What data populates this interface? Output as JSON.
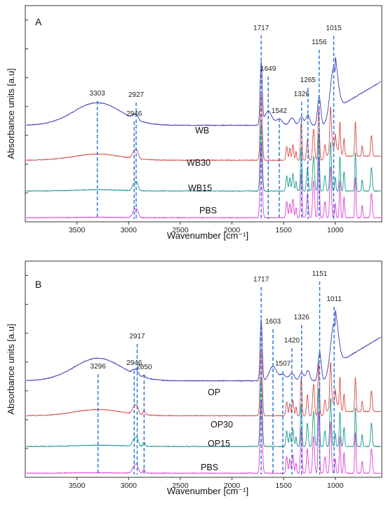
{
  "colors": {
    "blue": "#3b3bb8",
    "red": "#d94a4a",
    "teal": "#199a8d",
    "magenta": "#e040d8",
    "peak_line": "#2a6fd6"
  },
  "chart_data": [
    {
      "type": "line",
      "panel": "A",
      "xlabel": "Wavenumber [cm⁻¹]",
      "ylabel": "Absorbance units [a.u]",
      "xlim": [
        4000,
        550
      ],
      "x_reversed": true,
      "xticks": [
        3500,
        3000,
        2500,
        2000,
        1500,
        1000
      ],
      "grid": false,
      "series": [
        {
          "name": "WB",
          "color": "blue",
          "offset": 0.47
        },
        {
          "name": "WB30",
          "color": "red",
          "offset": 0.3
        },
        {
          "name": "WB15",
          "color": "teal",
          "offset": 0.15
        },
        {
          "name": "PBS",
          "color": "magenta",
          "offset": 0.02
        }
      ],
      "peaks": [
        {
          "x": 3303,
          "label": "3303"
        },
        {
          "x": 2946,
          "label": "2946"
        },
        {
          "x": 2927,
          "label": "2927"
        },
        {
          "x": 1717,
          "label": "1717"
        },
        {
          "x": 1649,
          "label": "1649"
        },
        {
          "x": 1542,
          "label": "1542"
        },
        {
          "x": 1326,
          "label": "1326"
        },
        {
          "x": 1265,
          "label": "1265"
        },
        {
          "x": 1156,
          "label": "1156"
        },
        {
          "x": 1015,
          "label": "1015"
        }
      ]
    },
    {
      "type": "line",
      "panel": "B",
      "xlabel": "Wavenumber [cm⁻¹]",
      "ylabel": "Absorbance units [a.u]",
      "xlim": [
        4000,
        550
      ],
      "x_reversed": true,
      "xticks": [
        3500,
        3000,
        2500,
        2000,
        1500,
        1000
      ],
      "grid": false,
      "series": [
        {
          "name": "OP",
          "color": "blue",
          "offset": 0.47
        },
        {
          "name": "OP30",
          "color": "red",
          "offset": 0.3
        },
        {
          "name": "OP15",
          "color": "teal",
          "offset": 0.15
        },
        {
          "name": "PBS",
          "color": "magenta",
          "offset": 0.02
        }
      ],
      "peaks": [
        {
          "x": 3296,
          "label": "3296"
        },
        {
          "x": 2946,
          "label": "2946"
        },
        {
          "x": 2917,
          "label": "2917"
        },
        {
          "x": 2850,
          "label": "2850"
        },
        {
          "x": 1717,
          "label": "1717"
        },
        {
          "x": 1603,
          "label": "1603"
        },
        {
          "x": 1507,
          "label": "1507"
        },
        {
          "x": 1420,
          "label": "1420"
        },
        {
          "x": 1326,
          "label": "1326"
        },
        {
          "x": 1151,
          "label": "1151"
        },
        {
          "x": 1011,
          "label": "1011"
        }
      ]
    }
  ]
}
